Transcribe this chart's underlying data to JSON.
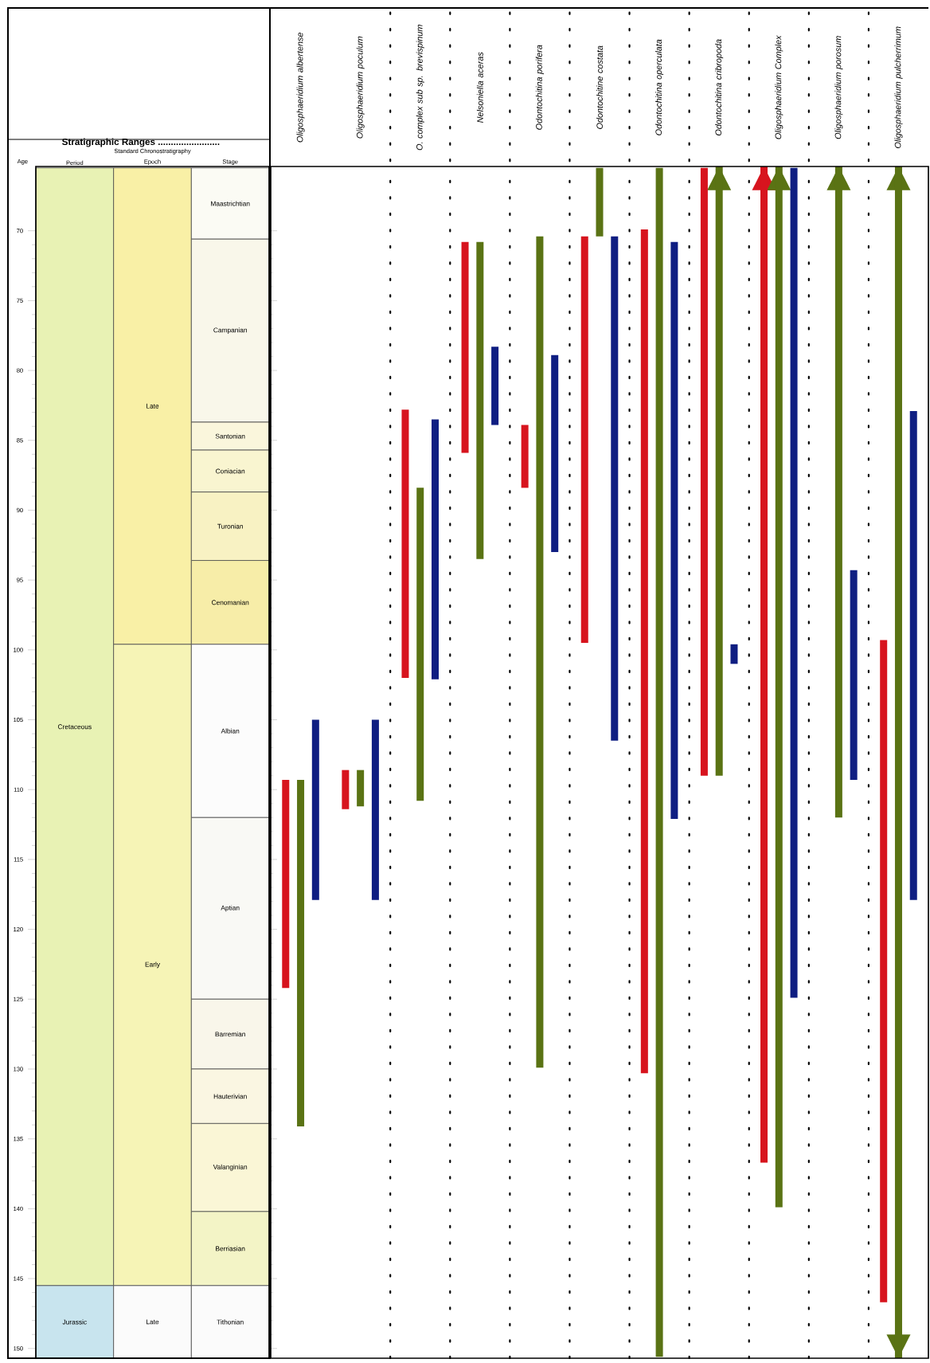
{
  "chart_data": [
    {
      "type": "bar",
      "title": "Stratigraphic Ranges ........................",
      "subtitle": "Standard Chronostratigraphy",
      "ylabel": "Age",
      "categories": [
        "Period",
        "Epoch",
        "Stage"
      ],
      "stacked": true,
      "ylim": [
        150.7,
        65.4
      ],
      "yticks": [
        70,
        75,
        80,
        85,
        90,
        95,
        100,
        105,
        110,
        115,
        120,
        125,
        130,
        135,
        140,
        145,
        150
      ],
      "series": [
        {
          "name": "Cretaceous",
          "color": "#e8f2b4",
          "base": [
            65.5,
            null,
            null
          ],
          "values": [
            80.0,
            null,
            null
          ]
        },
        {
          "name": "Jurassic",
          "color": "#c8e4ee",
          "base": [
            145.5,
            null,
            null
          ],
          "values": [
            5.2,
            null,
            null
          ]
        },
        {
          "name": "Late",
          "color": "#f9f0a6",
          "base": [
            null,
            65.5,
            null
          ],
          "values": [
            null,
            34.1,
            null
          ]
        },
        {
          "name": "Early",
          "color": "#f6f4b6",
          "base": [
            null,
            99.6,
            null
          ],
          "values": [
            null,
            45.9,
            null
          ]
        },
        {
          "name": "Late",
          "color": "#fbfbfb",
          "base": [
            null,
            145.5,
            null
          ],
          "values": [
            null,
            5.2,
            null
          ]
        },
        {
          "name": "Maastrichtian",
          "color": "#fbfbf4",
          "base": [
            null,
            null,
            65.5
          ],
          "values": [
            null,
            null,
            5.1
          ]
        },
        {
          "name": "Campanian",
          "color": "#f9f7ea",
          "base": [
            null,
            null,
            70.6
          ],
          "values": [
            null,
            null,
            13.1
          ]
        },
        {
          "name": "Santonian",
          "color": "#faf6dc",
          "base": [
            null,
            null,
            83.7
          ],
          "values": [
            null,
            null,
            2.0
          ]
        },
        {
          "name": "Coniacian",
          "color": "#f9f5d0",
          "base": [
            null,
            null,
            85.7
          ],
          "values": [
            null,
            null,
            3.0
          ]
        },
        {
          "name": "Turonian",
          "color": "#f8f2c3",
          "base": [
            null,
            null,
            88.7
          ],
          "values": [
            null,
            null,
            4.9
          ]
        },
        {
          "name": "Cenomanian",
          "color": "#f7eda8",
          "base": [
            null,
            null,
            93.6
          ],
          "values": [
            null,
            null,
            6.0
          ]
        },
        {
          "name": "Albian",
          "color": "#fcfcfc",
          "base": [
            null,
            null,
            99.6
          ],
          "values": [
            null,
            null,
            12.4
          ]
        },
        {
          "name": "Aptian",
          "color": "#f9f9f5",
          "base": [
            null,
            null,
            112.0
          ],
          "values": [
            null,
            null,
            13.0
          ]
        },
        {
          "name": "Barremian",
          "color": "#f9f6ea",
          "base": [
            null,
            null,
            125.0
          ],
          "values": [
            null,
            null,
            5.0
          ]
        },
        {
          "name": "Hauterivian",
          "color": "#faf6e2",
          "base": [
            null,
            null,
            130.0
          ],
          "values": [
            null,
            null,
            3.9
          ]
        },
        {
          "name": "Valanginian",
          "color": "#faf6d6",
          "base": [
            null,
            null,
            133.9
          ],
          "values": [
            null,
            null,
            6.3
          ]
        },
        {
          "name": "Berriasian",
          "color": "#f3f4c6",
          "base": [
            null,
            null,
            140.2
          ],
          "values": [
            null,
            null,
            5.3
          ]
        },
        {
          "name": "Tithonian",
          "color": "#fbfbfb",
          "base": [
            null,
            null,
            145.5
          ],
          "values": [
            null,
            null,
            5.2
          ]
        }
      ]
    },
    {
      "type": "bar",
      "categories": [
        "Oligosphaeridium albertense",
        "Oligosphaeridium poculum",
        "O. complex sub sp. brevispinum",
        "Nelsoniella aceras",
        "Odontochitina porifera",
        "Odontochitine costata",
        "Odontochitina operculata",
        "Odontochitina cribropoda",
        "Oligosphaeridium Complex",
        "Oligosphaeridium porosum",
        "Oligosphaeridium pulcherrimum"
      ],
      "ylim": [
        150.7,
        65.4
      ],
      "tick_labels": "x",
      "series": [
        {
          "color": "#d7141e",
          "base": [
            109.3,
            108.6,
            82.8,
            70.8,
            83.9,
            70.4,
            69.9,
            65.5,
            65.4,
            null,
            99.3
          ],
          "values": [
            14.9,
            2.8,
            19.2,
            15.1,
            4.5,
            29.1,
            60.4,
            43.5,
            71.3,
            null,
            47.4
          ]
        },
        {
          "color": "#5a7314",
          "base": [
            109.3,
            108.6,
            88.4,
            70.8,
            70.4,
            65.5,
            65.5,
            65.4,
            65.4,
            65.4,
            65.4
          ],
          "values": [
            24.8,
            2.6,
            22.4,
            22.7,
            59.5,
            4.9,
            85.1,
            43.6,
            74.5,
            46.6,
            85.3
          ]
        },
        {
          "color": "#0f1e82",
          "base": [
            105.0,
            105.0,
            83.5,
            78.3,
            78.9,
            70.4,
            70.8,
            99.6,
            65.5,
            94.3,
            82.9
          ],
          "values": [
            12.9,
            12.9,
            18.6,
            5.6,
            14.1,
            36.1,
            41.3,
            1.4,
            59.4,
            15.0,
            35.0
          ]
        }
      ]
    }
  ]
}
